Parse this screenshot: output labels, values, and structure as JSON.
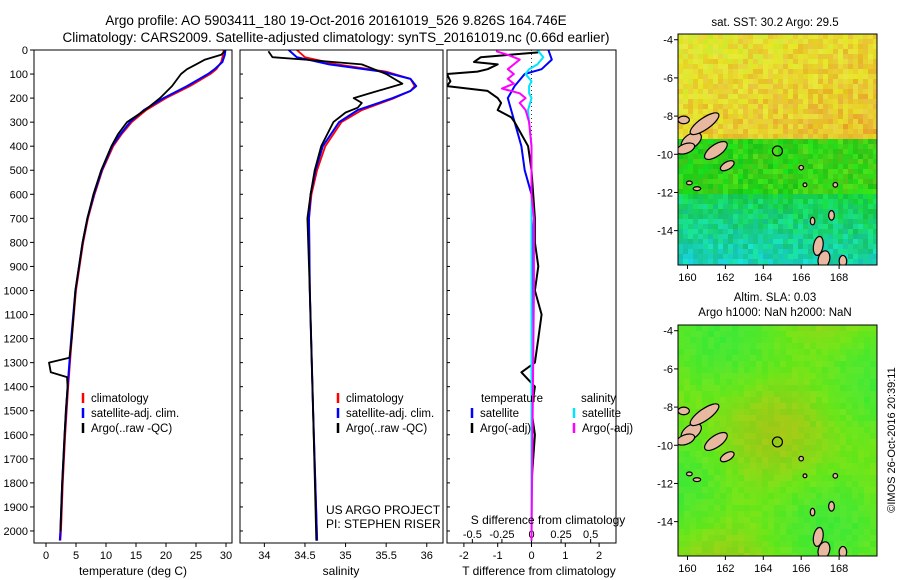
{
  "header": {
    "line1": "Argo profile: AO 5903411_180 19-Oct-2016 20161019_526 9.826S 164.746E",
    "line2": "Climatology: CARS2009. Satellite-adjusted climatology: synTS_20161019.nc (0.66d earlier)"
  },
  "colors": {
    "climatology": "#ff0000",
    "satellite": "#0000ff",
    "argo": "#000000",
    "sal_satellite": "#00e5ff",
    "sal_argo": "#ff00ff",
    "land": "#e8b9a0"
  },
  "chart_data": [
    {
      "type": "line",
      "panel": "temperature",
      "xlabel": "temperature (deg C)",
      "xlim": [
        -2,
        31
      ],
      "xticks": [
        0,
        5,
        10,
        15,
        20,
        25,
        30
      ],
      "ylim": [
        0,
        2050
      ],
      "yticks": [
        0,
        100,
        200,
        300,
        400,
        500,
        600,
        700,
        800,
        900,
        1000,
        1100,
        1200,
        1300,
        1400,
        1500,
        1600,
        1700,
        1800,
        1900,
        2000
      ],
      "legend": {
        "position": "bottom-left",
        "labels": [
          "climatology",
          "satellite-adj. clim.",
          "Argo(..raw -QC)"
        ]
      },
      "series": [
        {
          "name": "climatology",
          "depth": [
            0,
            20,
            50,
            80,
            100,
            150,
            200,
            250,
            300,
            350,
            400,
            500,
            600,
            700,
            800,
            900,
            1000,
            1200,
            1400,
            1600,
            1800,
            2000,
            2040
          ],
          "values": [
            29.6,
            29.5,
            29.2,
            28.4,
            27.4,
            24.0,
            20.0,
            16.7,
            14.3,
            12.6,
            11.2,
            9.4,
            8.1,
            7.0,
            6.2,
            5.6,
            5.0,
            4.3,
            3.7,
            3.2,
            2.8,
            2.5,
            2.4
          ]
        },
        {
          "name": "satellite-adj. clim.",
          "depth": [
            0,
            20,
            50,
            80,
            100,
            150,
            200,
            250,
            300,
            350,
            400,
            500,
            600,
            700,
            800,
            900,
            1000,
            1200,
            1400,
            1600,
            1800,
            2000,
            2040
          ],
          "values": [
            29.9,
            29.8,
            29.4,
            28.1,
            27.0,
            23.5,
            19.6,
            16.3,
            14.0,
            12.4,
            11.0,
            9.3,
            8.0,
            6.9,
            6.1,
            5.5,
            4.9,
            4.2,
            3.6,
            3.1,
            2.7,
            2.4,
            2.3
          ]
        },
        {
          "name": "Argo(..raw -QC)",
          "depth": [
            5,
            20,
            40,
            60,
            80,
            100,
            150,
            200,
            250,
            300,
            350,
            400,
            500,
            600,
            700,
            800,
            900,
            1000,
            1200,
            1280,
            1300,
            1340,
            1360,
            1400,
            1500,
            1600,
            1800,
            2000
          ],
          "values": [
            29.8,
            29.2,
            26.5,
            25.0,
            23.5,
            22.5,
            21.0,
            19.0,
            16.5,
            13.5,
            12.0,
            10.9,
            9.2,
            7.9,
            6.9,
            6.1,
            5.5,
            4.9,
            4.3,
            3.9,
            0.5,
            0.8,
            3.5,
            3.6,
            3.3,
            3.1,
            2.7,
            2.4
          ]
        }
      ]
    },
    {
      "type": "line",
      "panel": "salinity",
      "xlabel": "salinity",
      "xlim": [
        33.7,
        36.2
      ],
      "xticks": [
        34,
        34.5,
        35,
        35.5,
        36
      ],
      "xticklabels": [
        "34",
        "34.5",
        "35",
        "35.5",
        "36"
      ],
      "ylim": [
        0,
        2050
      ],
      "legend": {
        "position": "bottom-right",
        "labels": [
          "climatology",
          "satellite-adj. clim.",
          "Argo(..raw -QC)"
        ]
      },
      "series": [
        {
          "name": "climatology",
          "depth": [
            0,
            30,
            60,
            90,
            120,
            150,
            170,
            200,
            250,
            300,
            400,
            500,
            600,
            700,
            1000,
            1500,
            2040
          ],
          "values": [
            34.4,
            34.5,
            34.9,
            35.5,
            35.8,
            35.85,
            35.8,
            35.6,
            35.2,
            34.95,
            34.75,
            34.65,
            34.58,
            34.55,
            34.56,
            34.6,
            34.65
          ]
        },
        {
          "name": "satellite-adj. clim.",
          "depth": [
            0,
            30,
            60,
            90,
            120,
            150,
            170,
            200,
            250,
            300,
            400,
            500,
            600,
            700,
            1000,
            1500,
            2040
          ],
          "values": [
            34.3,
            34.4,
            34.8,
            35.45,
            35.8,
            35.87,
            35.8,
            35.58,
            35.15,
            34.92,
            34.72,
            34.63,
            34.57,
            34.55,
            34.56,
            34.6,
            34.65
          ]
        },
        {
          "name": "Argo(..raw -QC)",
          "depth": [
            5,
            30,
            40,
            60,
            80,
            100,
            120,
            140,
            160,
            180,
            200,
            220,
            240,
            260,
            300,
            400,
            500,
            600,
            700,
            800,
            1000,
            1500,
            2040
          ],
          "values": [
            34.05,
            34.1,
            34.5,
            35.2,
            35.35,
            35.5,
            35.6,
            35.7,
            35.5,
            35.3,
            35.1,
            35.2,
            35.15,
            35.0,
            34.85,
            34.7,
            34.62,
            34.57,
            34.53,
            34.54,
            34.56,
            34.6,
            34.64
          ]
        }
      ]
    },
    {
      "type": "line",
      "panel": "difference",
      "xlabel": "T difference from climatology",
      "toplabel": "S difference from climatology",
      "xlim": [
        -2.5,
        2.5
      ],
      "xticks": [
        -2,
        -1,
        0,
        1,
        2
      ],
      "xticklabels": [
        "-2",
        "-1",
        "0",
        "1",
        "2"
      ],
      "sticks": [
        -0.5,
        -0.25,
        0,
        0.25,
        0.5
      ],
      "sticklabels": [
        "-0.5",
        "-0.25",
        "0",
        "0.25",
        "0.5"
      ],
      "ylim": [
        0,
        2050
      ],
      "legend": {
        "temperature_title": "temperature",
        "salinity_title": "salinity",
        "temperature_labels": [
          "satellite",
          "Argo(-adj)"
        ],
        "salinity_labels": [
          "satellite",
          "Argo(-adj)"
        ]
      },
      "series": [
        {
          "name": "T satellite",
          "depth": [
            0,
            40,
            80,
            100,
            150,
            200,
            250,
            300,
            400,
            500,
            600,
            700,
            800,
            1000,
            1500,
            2040
          ],
          "values": [
            0.5,
            0.6,
            0.3,
            -0.2,
            -0.5,
            -0.7,
            -0.6,
            -0.5,
            -0.3,
            -0.2,
            0.0,
            0.0,
            0.05,
            0.05,
            0.0,
            0.0
          ]
        },
        {
          "name": "T Argo(-adj)",
          "depth": [
            10,
            30,
            50,
            60,
            80,
            90,
            100,
            130,
            150,
            170,
            200,
            220,
            250,
            280,
            300,
            350,
            400,
            500,
            600,
            700,
            800,
            900,
            1000,
            1100,
            1200,
            1300,
            1340,
            1400,
            1500,
            1600,
            1800,
            2000
          ],
          "values": [
            0.2,
            -1.5,
            -1.7,
            -1.0,
            -1.3,
            -1.6,
            -2.5,
            -2.4,
            -2.5,
            -1.3,
            -1.0,
            -0.9,
            -1.0,
            -0.6,
            -0.5,
            -0.3,
            -0.1,
            0.0,
            0.05,
            0.1,
            0.1,
            0.2,
            0.1,
            0.3,
            0.2,
            0.1,
            -0.3,
            0.1,
            0.0,
            0.1,
            0.0,
            0.0
          ]
        },
        {
          "name": "S satellite",
          "depth": [
            0,
            30,
            60,
            80,
            100,
            130,
            150,
            180,
            200,
            250,
            300,
            400,
            500,
            700,
            1000,
            1500,
            2040
          ],
          "values": [
            0.05,
            0.1,
            0.05,
            -0.02,
            -0.05,
            0.0,
            -0.02,
            -0.02,
            0.0,
            -0.03,
            -0.02,
            0.0,
            0.0,
            0.0,
            0.0,
            0.0,
            0.0
          ]
        },
        {
          "name": "S Argo(-adj)",
          "depth": [
            5,
            20,
            40,
            60,
            80,
            100,
            120,
            140,
            160,
            180,
            200,
            220,
            250,
            300,
            400,
            500,
            600,
            700,
            1000,
            1500,
            2040
          ],
          "values": [
            -0.3,
            -0.2,
            -0.1,
            -0.15,
            -0.2,
            -0.15,
            -0.2,
            -0.15,
            -0.25,
            -0.1,
            -0.05,
            -0.1,
            -0.05,
            -0.02,
            0.0,
            0.0,
            0.0,
            0.02,
            0.02,
            0.01,
            0.0
          ]
        }
      ]
    }
  ],
  "annotations": {
    "project": "US ARGO PROJECT",
    "pi": "PI: STEPHEN RISER"
  },
  "maps": [
    {
      "name": "sst",
      "title": "sat. SST: 30.2 Argo: 29.5",
      "xticks": [
        160,
        162,
        164,
        166,
        168
      ],
      "yticks": [
        -4,
        -6,
        -8,
        -10,
        -12,
        -14
      ],
      "xlim": [
        159.5,
        170
      ],
      "ylim": [
        -15.8,
        -3.7
      ],
      "marker": {
        "lon": 164.746,
        "lat": -9.826
      }
    },
    {
      "name": "sla",
      "title1": "Altim. SLA: 0.03",
      "title2": "Argo h1000: NaN h2000: NaN",
      "xticks": [
        160,
        162,
        164,
        166,
        168
      ],
      "yticks": [
        -4,
        -6,
        -8,
        -10,
        -12,
        -14
      ],
      "xlim": [
        159.5,
        170
      ],
      "ylim": [
        -15.8,
        -3.7
      ],
      "marker": {
        "lon": 164.746,
        "lat": -9.826
      }
    }
  ],
  "footer": {
    "credit": "©IMOS 26-Oct-2016 20:39:11"
  }
}
